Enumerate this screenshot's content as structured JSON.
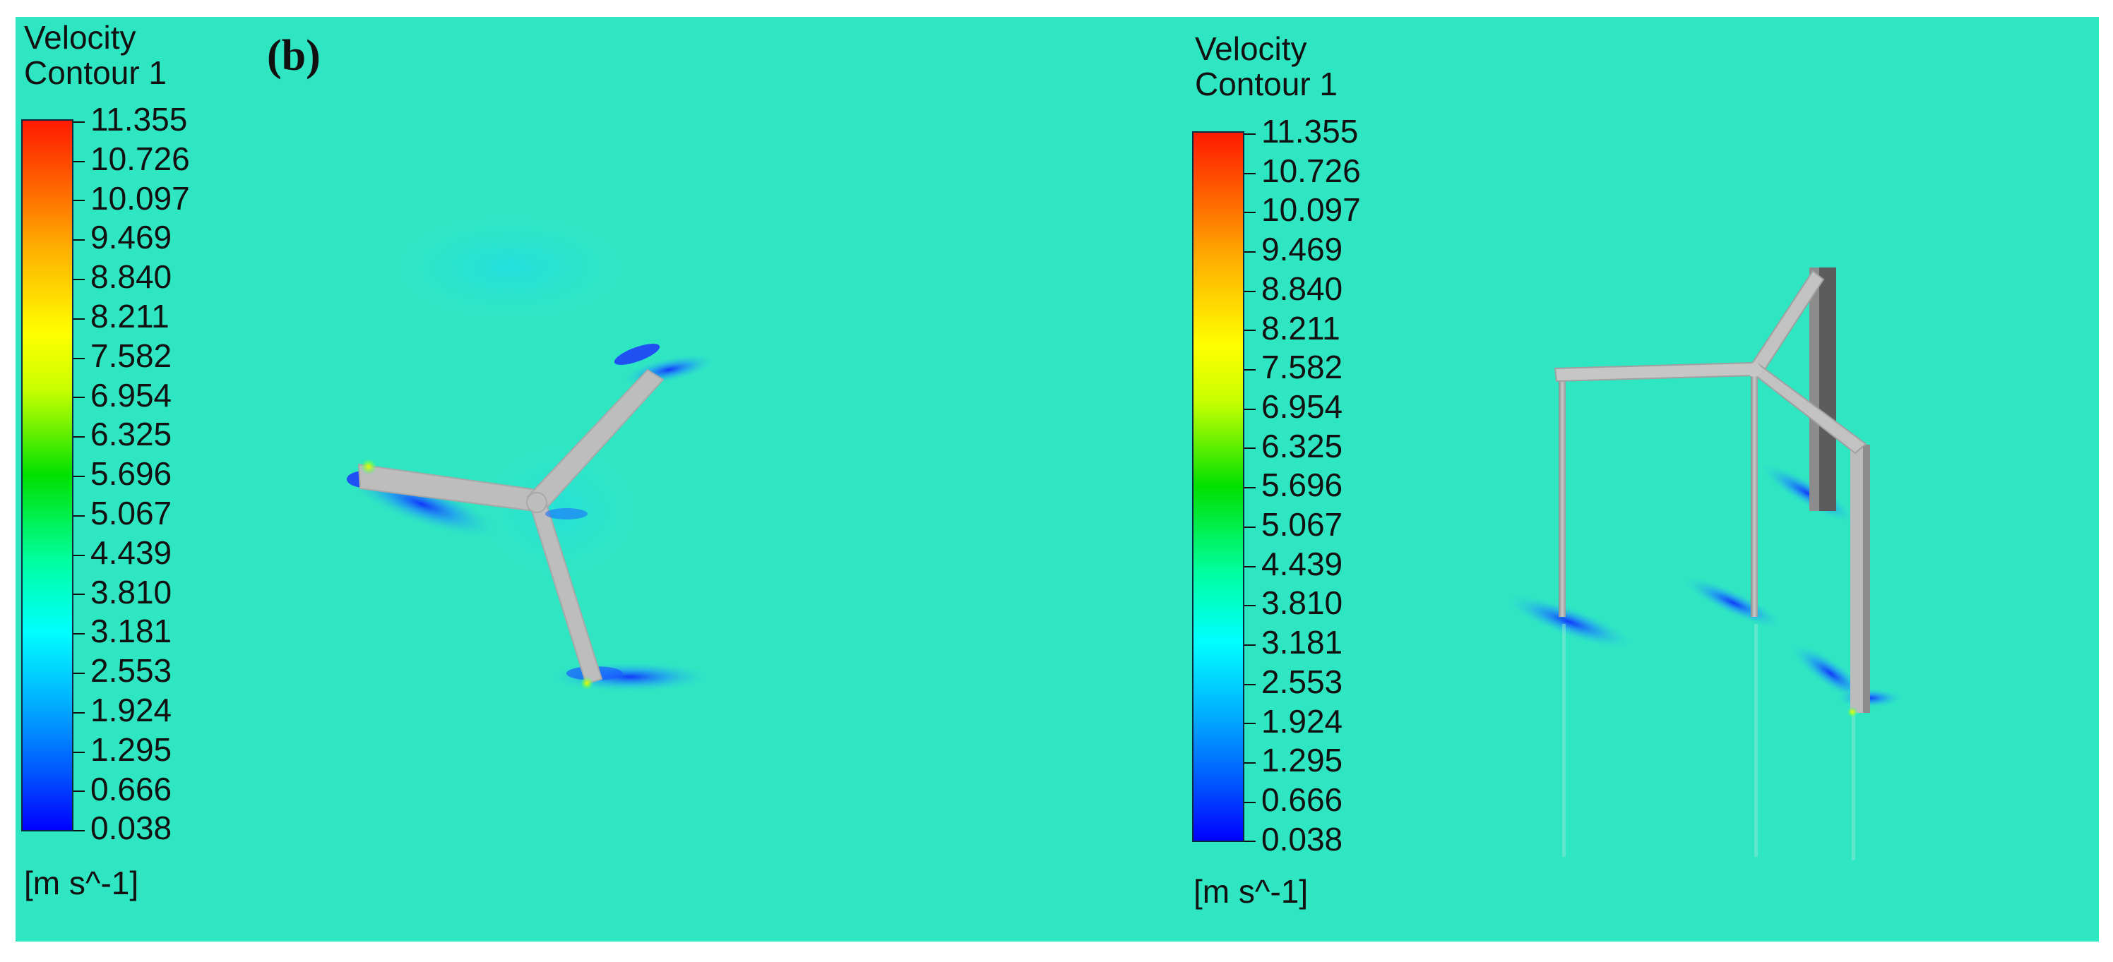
{
  "panel_label": "(b)",
  "legends": [
    {
      "title_line1": "Velocity",
      "title_line2": "Contour 1",
      "ticks": [
        "11.355",
        "10.726",
        "10.097",
        "9.469",
        "8.840",
        "8.211",
        "7.582",
        "6.954",
        "6.325",
        "5.696",
        "5.067",
        "4.439",
        "3.810",
        "3.181",
        "2.553",
        "1.924",
        "1.295",
        "0.666",
        "0.038"
      ],
      "unit": "[m s^-1]"
    },
    {
      "title_line1": "Velocity",
      "title_line2": "Contour 1",
      "ticks": [
        "11.355",
        "10.726",
        "10.097",
        "9.469",
        "8.840",
        "8.211",
        "7.582",
        "6.954",
        "6.325",
        "5.696",
        "5.067",
        "4.439",
        "3.810",
        "3.181",
        "2.553",
        "1.924",
        "1.295",
        "0.666",
        "0.038"
      ],
      "unit": "[m s^-1]"
    }
  ],
  "colors": {
    "background_flow": "#2fe6c3",
    "blade": "#bdbdbd",
    "wake_low": "#0033ff"
  }
}
